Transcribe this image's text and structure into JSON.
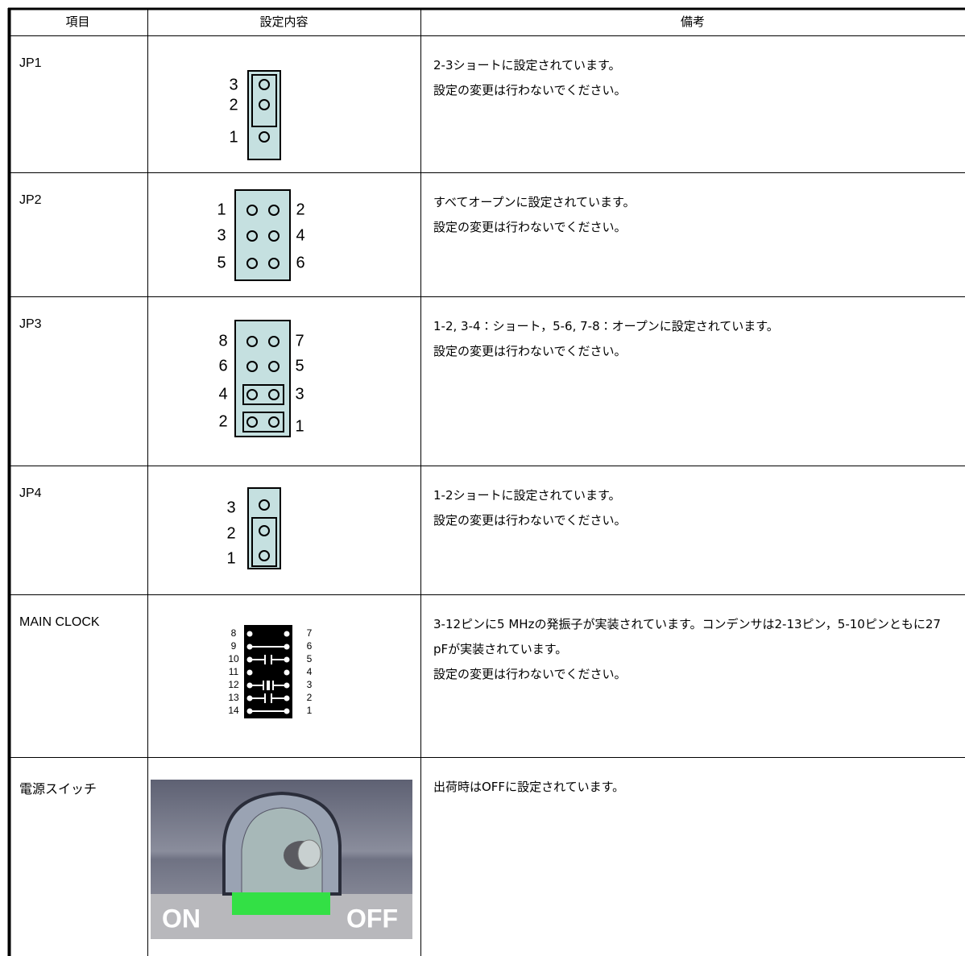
{
  "table": {
    "headers": [
      "項目",
      "設定内容",
      "備考"
    ],
    "rows": [
      {
        "item": "JP1",
        "pins_left": [
          "3",
          "2",
          "1"
        ],
        "notes": [
          "2-3ショートに設定されています。",
          "設定の変更は行わないでください。"
        ]
      },
      {
        "item": "JP2",
        "pins_left": [
          "1",
          "3",
          "5"
        ],
        "pins_right": [
          "2",
          "4",
          "6"
        ],
        "notes": [
          "すべてオープンに設定されています。",
          "設定の変更は行わないでください。"
        ]
      },
      {
        "item": "JP3",
        "pins_left": [
          "8",
          "6",
          "4",
          "2"
        ],
        "pins_right": [
          "7",
          "5",
          "3",
          "1"
        ],
        "notes": [
          "1-2, 3-4：ショート，5-6, 7-8：オープンに設定されています。",
          "設定の変更は行わないでください。"
        ]
      },
      {
        "item": "JP4",
        "pins_left": [
          "3",
          "2",
          "1"
        ],
        "notes": [
          "1-2ショートに設定されています。",
          "設定の変更は行わないでください。"
        ]
      },
      {
        "item": "MAIN CLOCK",
        "pins_left": [
          "8",
          "9",
          "10",
          "11",
          "12",
          "13",
          "14"
        ],
        "pins_right": [
          "7",
          "6",
          "5",
          "4",
          "3",
          "2",
          "1"
        ],
        "notes": [
          "3-12ピンに5 MHzの発振子が実装されています。コンデンサは2-13ピン，5-10ピンともに27 pFが実装されています。",
          "設定の変更は行わないでください。"
        ]
      },
      {
        "item": "電源スイッチ",
        "switch": {
          "on": "ON",
          "off": "OFF"
        },
        "notes": [
          "出荷時はOFFに設定されています。"
        ]
      }
    ]
  }
}
